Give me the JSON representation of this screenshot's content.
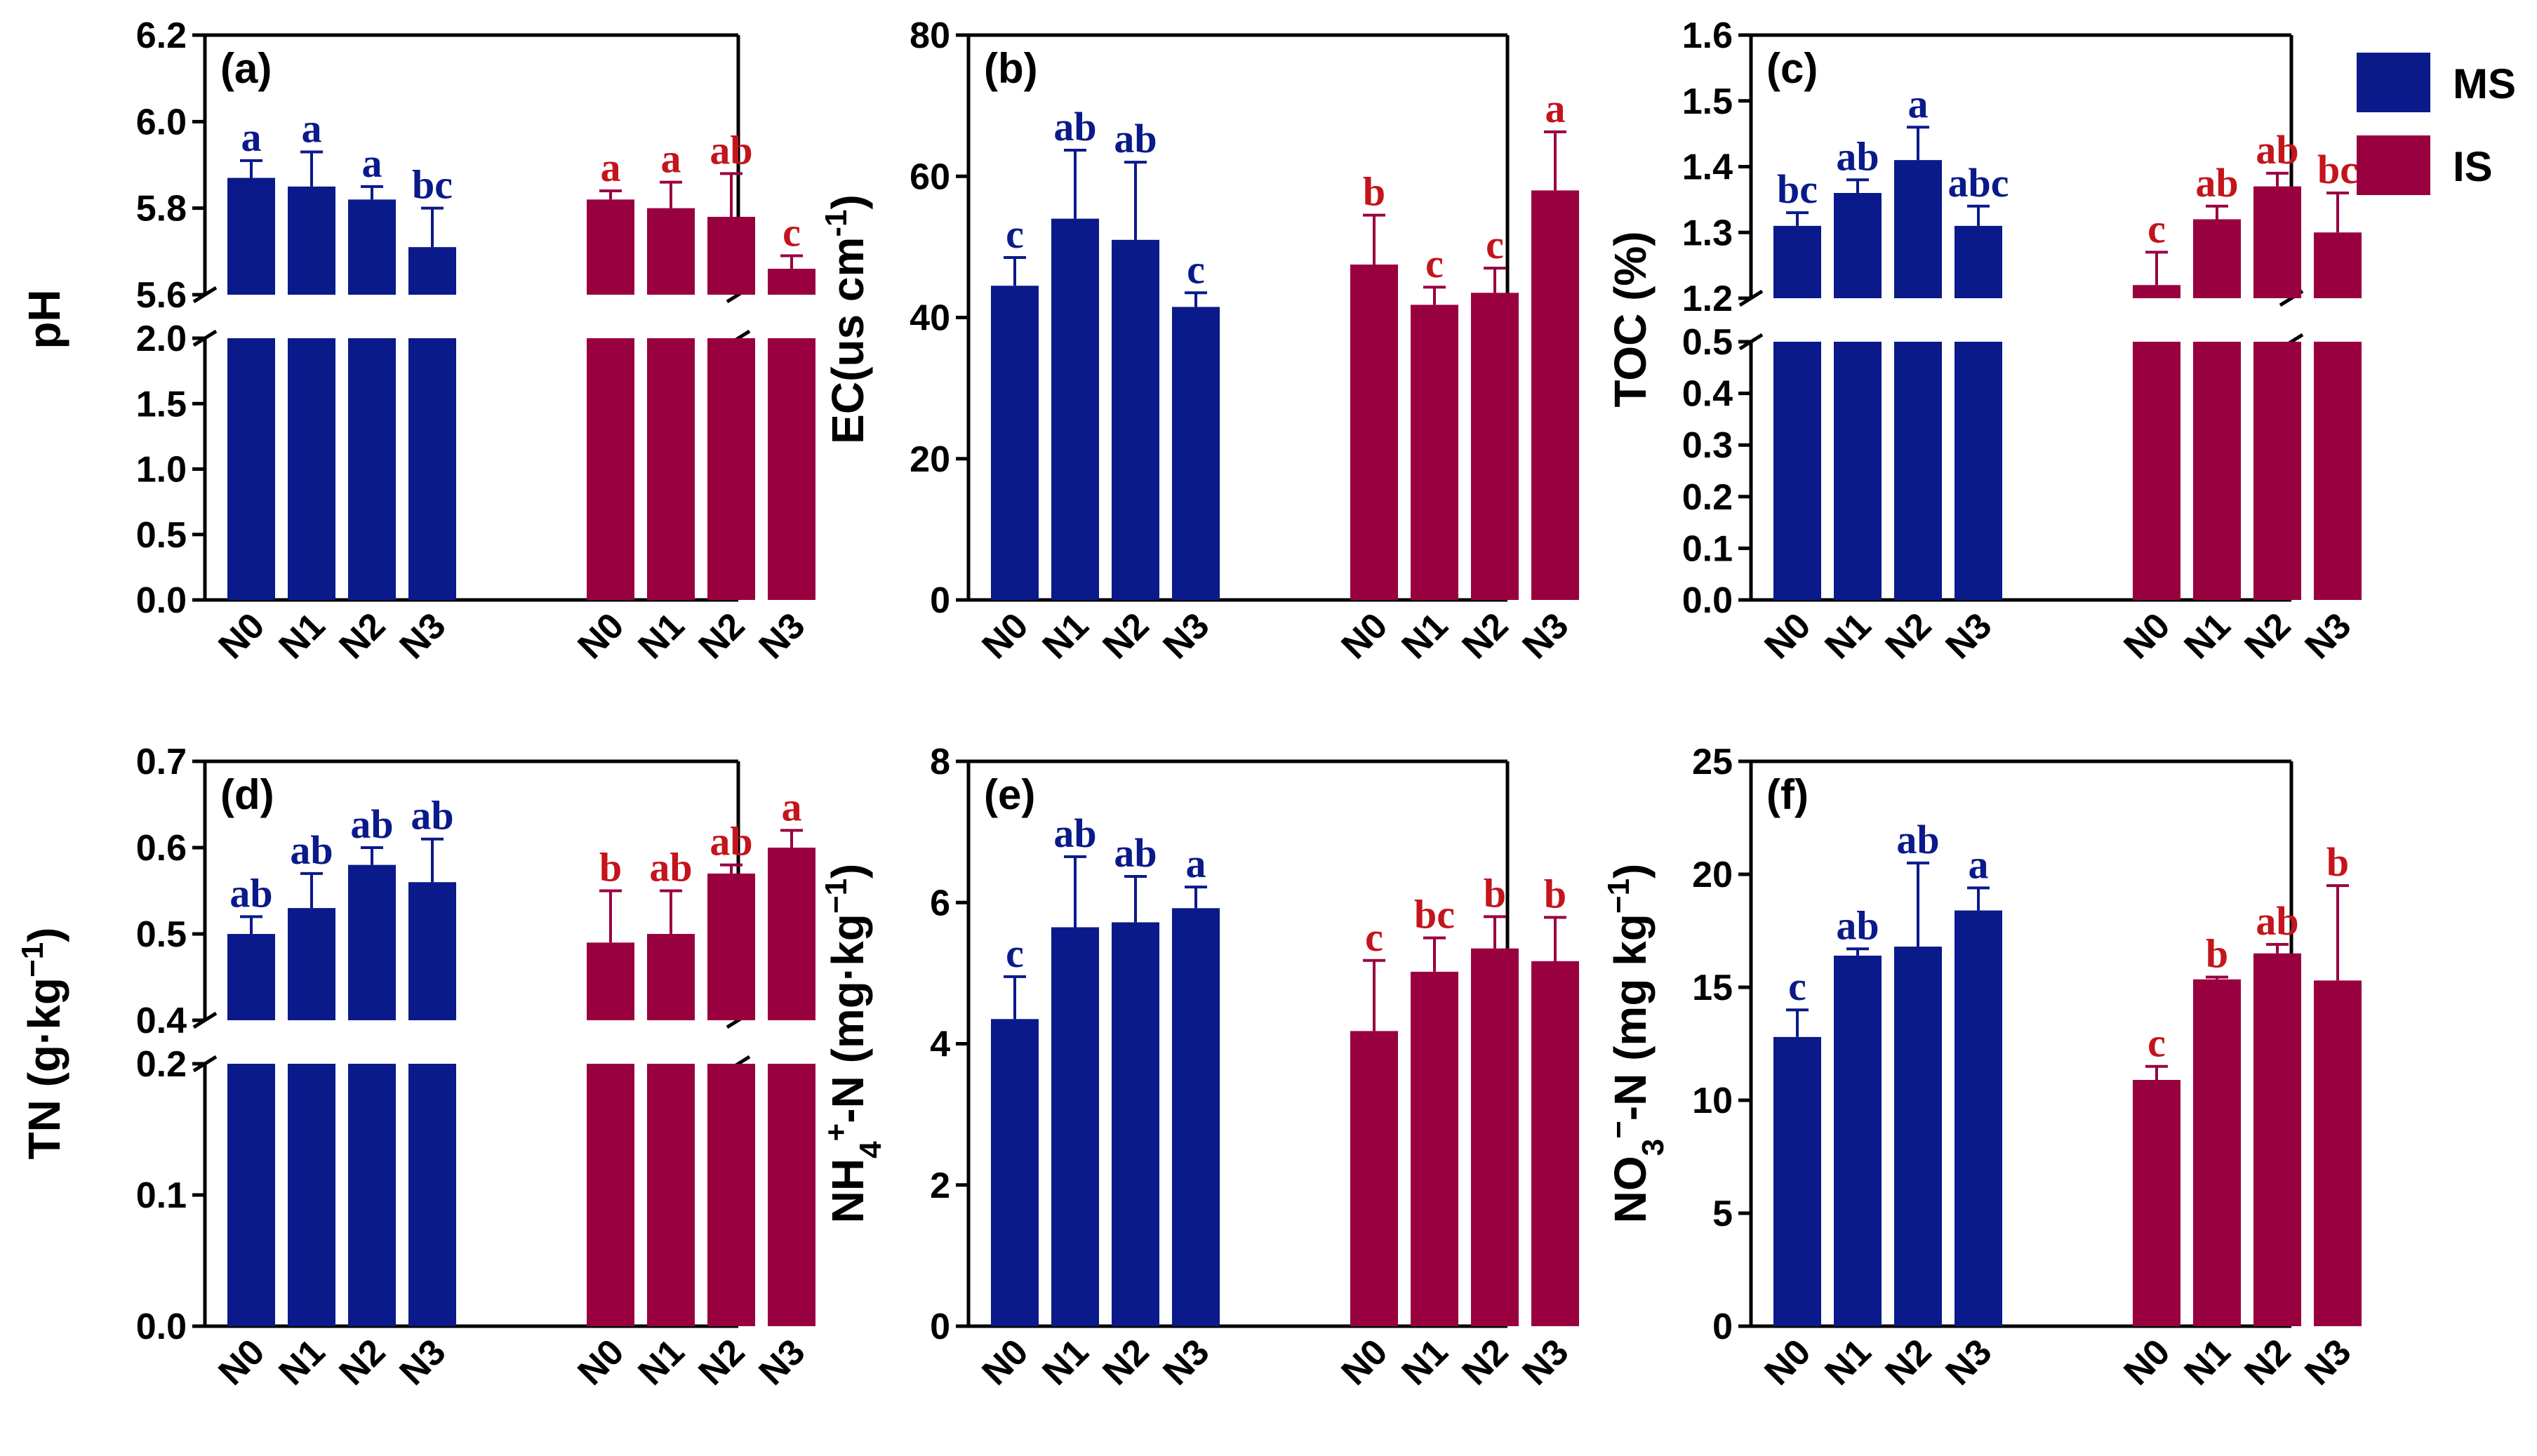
{
  "chart_data": [
    {
      "type": "bar",
      "panel_label": "(a)",
      "ylabel": "pH",
      "categories": [
        "N0",
        "N1",
        "N2",
        "N3"
      ],
      "axis_break": {
        "lower": [
          0,
          2.0
        ],
        "upper": [
          5.6,
          6.2
        ]
      },
      "lower_ticks": [
        "0.0",
        "0.5",
        "1.0",
        "1.5",
        "2.0"
      ],
      "upper_ticks": [
        "5.6",
        "5.8",
        "6.0",
        "6.2"
      ],
      "series": [
        {
          "name": "MS",
          "values": [
            5.87,
            5.85,
            5.82,
            5.71
          ],
          "errors": [
            0.04,
            0.08,
            0.03,
            0.09
          ],
          "letters": [
            "a",
            "a",
            "a",
            "bc"
          ]
        },
        {
          "name": "IS",
          "values": [
            5.82,
            5.8,
            5.78,
            5.66
          ],
          "errors": [
            0.02,
            0.06,
            0.1,
            0.03
          ],
          "letters": [
            "a",
            "a",
            "ab",
            "c"
          ]
        }
      ]
    },
    {
      "type": "bar",
      "panel_label": "(b)",
      "ylabel": "EC(us cm",
      "ylabel_sup": "-1",
      "ylabel_end": ")",
      "categories": [
        "N0",
        "N1",
        "N2",
        "N3"
      ],
      "ylim": [
        0,
        80
      ],
      "ticks": [
        "0",
        "20",
        "40",
        "60",
        "80"
      ],
      "series": [
        {
          "name": "MS",
          "values": [
            44.5,
            54.0,
            51.0,
            41.5
          ],
          "errors": [
            4.0,
            9.7,
            11.0,
            2.0
          ],
          "letters": [
            "c",
            "ab",
            "ab",
            "c"
          ]
        },
        {
          "name": "IS",
          "values": [
            47.5,
            41.8,
            43.5,
            58.0
          ],
          "errors": [
            7.0,
            2.5,
            3.5,
            8.3
          ],
          "letters": [
            "b",
            "c",
            "c",
            "a"
          ]
        }
      ]
    },
    {
      "type": "bar",
      "panel_label": "(c)",
      "ylabel": "TOC (%)",
      "categories": [
        "N0",
        "N1",
        "N2",
        "N3"
      ],
      "axis_break": {
        "lower": [
          0,
          0.5
        ],
        "upper": [
          1.2,
          1.6
        ]
      },
      "lower_ticks": [
        "0.0",
        "0.1",
        "0.2",
        "0.3",
        "0.4",
        "0.5"
      ],
      "upper_ticks": [
        "1.2",
        "1.3",
        "1.4",
        "1.5",
        "1.6"
      ],
      "series": [
        {
          "name": "MS",
          "values": [
            1.31,
            1.36,
            1.41,
            1.31
          ],
          "errors": [
            0.02,
            0.02,
            0.05,
            0.03
          ],
          "letters": [
            "bc",
            "ab",
            "a",
            "abc"
          ]
        },
        {
          "name": "IS",
          "values": [
            1.22,
            1.32,
            1.37,
            1.3
          ],
          "errors": [
            0.05,
            0.02,
            0.02,
            0.06
          ],
          "letters": [
            "c",
            "ab",
            "ab",
            "bc"
          ]
        }
      ]
    },
    {
      "type": "bar",
      "panel_label": "(d)",
      "ylabel": "TN (g·kg",
      "ylabel_sup": "−1",
      "ylabel_end": ")",
      "categories": [
        "N0",
        "N1",
        "N2",
        "N3"
      ],
      "axis_break": {
        "lower": [
          0,
          0.2
        ],
        "upper": [
          0.4,
          0.7
        ]
      },
      "lower_ticks": [
        "0.0",
        "0.1",
        "0.2"
      ],
      "upper_ticks": [
        "0.4",
        "0.5",
        "0.6",
        "0.7"
      ],
      "series": [
        {
          "name": "MS",
          "values": [
            0.5,
            0.53,
            0.58,
            0.56
          ],
          "errors": [
            0.02,
            0.04,
            0.02,
            0.05
          ],
          "letters": [
            "ab",
            "ab",
            "ab",
            "ab"
          ]
        },
        {
          "name": "IS",
          "values": [
            0.49,
            0.5,
            0.57,
            0.6
          ],
          "errors": [
            0.06,
            0.05,
            0.01,
            0.02
          ],
          "letters": [
            "b",
            "ab",
            "ab",
            "a"
          ]
        }
      ]
    },
    {
      "type": "bar",
      "panel_label": "(e)",
      "ylabel": "NH",
      "ylabel_sub": "4",
      "ylabel_sup": "+",
      "ylabel_end": "-N (mg·kg",
      "ylabel_sup2": "−1",
      "ylabel_end2": ")",
      "categories": [
        "N0",
        "N1",
        "N2",
        "N3"
      ],
      "ylim": [
        0,
        8
      ],
      "ticks": [
        "0",
        "2",
        "4",
        "6",
        "8"
      ],
      "series": [
        {
          "name": "MS",
          "values": [
            4.35,
            5.65,
            5.72,
            5.92
          ],
          "errors": [
            0.6,
            1.0,
            0.65,
            0.3
          ],
          "letters": [
            "c",
            "ab",
            "ab",
            "a"
          ]
        },
        {
          "name": "IS",
          "values": [
            4.18,
            5.02,
            5.35,
            5.17
          ],
          "errors": [
            1.0,
            0.48,
            0.45,
            0.62
          ],
          "letters": [
            "c",
            "bc",
            "b",
            "b"
          ]
        }
      ]
    },
    {
      "type": "bar",
      "panel_label": "(f)",
      "ylabel": "NO",
      "ylabel_sub": "3",
      "ylabel_sup": "−",
      "ylabel_end": "-N (mg kg",
      "ylabel_sup2": "−1",
      "ylabel_end2": ")",
      "categories": [
        "N0",
        "N1",
        "N2",
        "N3"
      ],
      "ylim": [
        0,
        25
      ],
      "ticks": [
        "0",
        "5",
        "10",
        "15",
        "20",
        "25"
      ],
      "series": [
        {
          "name": "MS",
          "values": [
            12.8,
            16.4,
            16.8,
            18.4
          ],
          "errors": [
            1.2,
            0.3,
            3.7,
            1.0
          ],
          "letters": [
            "c",
            "ab",
            "ab",
            "a"
          ]
        },
        {
          "name": "IS",
          "values": [
            10.9,
            15.35,
            16.5,
            15.3
          ],
          "errors": [
            0.6,
            0.1,
            0.4,
            4.2
          ],
          "letters": [
            "c",
            "b",
            "ab",
            "b"
          ]
        }
      ]
    }
  ],
  "legend": [
    {
      "name": "MS",
      "color": "#0a1a8a"
    },
    {
      "name": "IS",
      "color": "#990040"
    }
  ],
  "colors": {
    "MS": "#0a1a8a",
    "IS": "#990040",
    "MS_letter": "#0a1a8a",
    "IS_letter": "#c4141c"
  }
}
